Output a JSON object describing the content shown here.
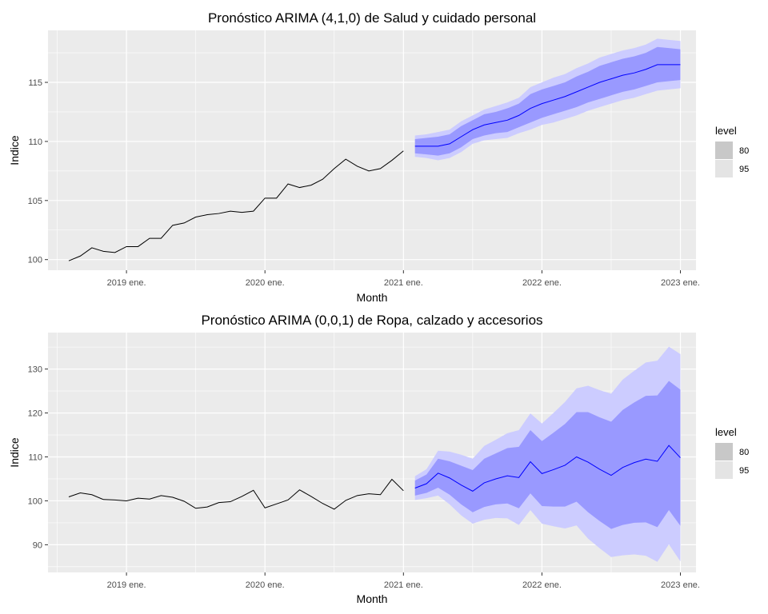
{
  "chart_data": [
    {
      "type": "line",
      "title": "Pronóstico ARIMA (4,1,0) de Salud y cuidado personal",
      "xlabel": "Month",
      "ylabel": "Indice",
      "ylim": [
        99.1,
        119.4
      ],
      "yticks": [
        100,
        105,
        110,
        115
      ],
      "xticks": [
        "2019 ene.",
        "2020 ene.",
        "2021 ene.",
        "2022 ene.",
        "2023 ene."
      ],
      "legend": {
        "title": "level",
        "entries": [
          "80",
          "95"
        ],
        "position": "right"
      },
      "colors": {
        "band95": "#ccccff",
        "band80": "#9999ff",
        "forecast_line": "#0000ff",
        "history_line": "#000000",
        "panel_bg": "#ebebeb",
        "grid": "#ffffff"
      },
      "history": {
        "x": [
          "2018-08",
          "2018-09",
          "2018-10",
          "2018-11",
          "2018-12",
          "2019-01",
          "2019-02",
          "2019-03",
          "2019-04",
          "2019-05",
          "2019-06",
          "2019-07",
          "2019-08",
          "2019-09",
          "2019-10",
          "2019-11",
          "2019-12",
          "2020-01",
          "2020-02",
          "2020-03",
          "2020-04",
          "2020-05",
          "2020-06",
          "2020-07",
          "2020-08",
          "2020-09",
          "2020-10",
          "2020-11",
          "2020-12",
          "2021-01"
        ],
        "values": [
          99.9,
          100.3,
          101.0,
          100.7,
          100.6,
          101.1,
          101.1,
          101.8,
          101.8,
          102.9,
          103.1,
          103.6,
          103.8,
          103.9,
          104.1,
          104.0,
          104.1,
          105.2,
          105.2,
          106.4,
          106.1,
          106.3,
          106.8,
          107.7,
          108.5,
          107.9,
          107.5,
          107.7,
          108.4,
          109.2
        ]
      },
      "forecast": {
        "x": [
          "2021-02",
          "2021-03",
          "2021-04",
          "2021-05",
          "2021-06",
          "2021-07",
          "2021-08",
          "2021-09",
          "2021-10",
          "2021-11",
          "2021-12",
          "2022-01",
          "2022-02",
          "2022-03",
          "2022-04",
          "2022-05",
          "2022-06",
          "2022-07",
          "2022-08",
          "2022-09",
          "2022-10",
          "2022-11",
          "2022-12",
          "2023-01"
        ],
        "mean": [
          109.6,
          109.6,
          109.6,
          109.8,
          110.4,
          111.0,
          111.4,
          111.6,
          111.8,
          112.2,
          112.8,
          113.2,
          113.5,
          113.8,
          114.2,
          114.6,
          115.0,
          115.3,
          115.6,
          115.8,
          116.1,
          116.5,
          116.5,
          116.5
        ],
        "lo80": [
          109.0,
          108.9,
          108.8,
          109.0,
          109.5,
          110.2,
          110.5,
          110.7,
          110.8,
          111.2,
          111.6,
          112.0,
          112.3,
          112.6,
          112.9,
          113.3,
          113.6,
          113.9,
          114.2,
          114.4,
          114.7,
          115.0,
          115.1,
          115.2
        ],
        "hi80": [
          110.2,
          110.3,
          110.4,
          110.6,
          111.3,
          111.8,
          112.3,
          112.5,
          112.8,
          113.2,
          114.0,
          114.4,
          114.7,
          115.0,
          115.5,
          115.9,
          116.4,
          116.7,
          117.0,
          117.2,
          117.5,
          118.0,
          117.9,
          117.8
        ],
        "lo95": [
          108.7,
          108.6,
          108.4,
          108.6,
          109.1,
          109.8,
          110.1,
          110.2,
          110.3,
          110.7,
          111.0,
          111.4,
          111.6,
          111.9,
          112.2,
          112.6,
          112.9,
          113.2,
          113.5,
          113.7,
          114.0,
          114.3,
          114.4,
          114.5
        ],
        "hi95": [
          110.5,
          110.6,
          110.8,
          111.0,
          111.7,
          112.2,
          112.7,
          113.0,
          113.3,
          113.7,
          114.6,
          115.0,
          115.4,
          115.7,
          116.2,
          116.6,
          117.1,
          117.4,
          117.7,
          117.9,
          118.2,
          118.7,
          118.6,
          118.5
        ]
      }
    },
    {
      "type": "line",
      "title": "Pronóstico ARIMA (0,0,1) de Ropa, calzado y accesorios",
      "xlabel": "Month",
      "ylabel": "Indice",
      "ylim": [
        83.7,
        138.3
      ],
      "yticks": [
        90,
        100,
        110,
        120,
        130
      ],
      "xticks": [
        "2019 ene.",
        "2020 ene.",
        "2021 ene.",
        "2022 ene.",
        "2023 ene."
      ],
      "legend": {
        "title": "level",
        "entries": [
          "80",
          "95"
        ],
        "position": "right"
      },
      "colors": {
        "band95": "#ccccff",
        "band80": "#9999ff",
        "forecast_line": "#0000ff",
        "history_line": "#000000",
        "panel_bg": "#ebebeb",
        "grid": "#ffffff"
      },
      "history": {
        "x": [
          "2018-08",
          "2018-09",
          "2018-10",
          "2018-11",
          "2018-12",
          "2019-01",
          "2019-02",
          "2019-03",
          "2019-04",
          "2019-05",
          "2019-06",
          "2019-07",
          "2019-08",
          "2019-09",
          "2019-10",
          "2019-11",
          "2019-12",
          "2020-01",
          "2020-02",
          "2020-03",
          "2020-04",
          "2020-05",
          "2020-06",
          "2020-07",
          "2020-08",
          "2020-09",
          "2020-10",
          "2020-11",
          "2020-12",
          "2021-01"
        ],
        "values": [
          100.9,
          101.8,
          101.4,
          100.3,
          100.2,
          100.0,
          100.6,
          100.4,
          101.2,
          100.8,
          99.9,
          98.3,
          98.6,
          99.6,
          99.8,
          101.0,
          102.4,
          98.4,
          99.3,
          100.2,
          102.5,
          101.0,
          99.4,
          98.1,
          100.1,
          101.2,
          101.6,
          101.4,
          104.9,
          102.3
        ]
      },
      "forecast": {
        "x": [
          "2021-02",
          "2021-03",
          "2021-04",
          "2021-05",
          "2021-06",
          "2021-07",
          "2021-08",
          "2021-09",
          "2021-10",
          "2021-11",
          "2021-12",
          "2022-01",
          "2022-02",
          "2022-03",
          "2022-04",
          "2022-05",
          "2022-06",
          "2022-07",
          "2022-08",
          "2022-09",
          "2022-10",
          "2022-11",
          "2022-12",
          "2023-01"
        ],
        "mean": [
          102.9,
          103.9,
          106.3,
          105.2,
          103.6,
          102.2,
          104.1,
          105.0,
          105.7,
          105.3,
          108.9,
          106.2,
          107.1,
          108.1,
          110.0,
          108.8,
          107.2,
          105.8,
          107.6,
          108.7,
          109.5,
          109.0,
          112.6,
          109.8
        ],
        "lo80": [
          101.2,
          101.8,
          103.0,
          101.4,
          99.2,
          97.4,
          98.6,
          99.2,
          99.4,
          98.3,
          101.7,
          98.8,
          98.7,
          98.7,
          99.8,
          97.4,
          95.4,
          93.6,
          94.5,
          95.0,
          95.1,
          94.0,
          97.9,
          94.3
        ],
        "hi80": [
          104.6,
          106.0,
          109.6,
          109.0,
          108.0,
          107.0,
          109.6,
          110.8,
          112.0,
          112.3,
          116.1,
          113.6,
          115.5,
          117.5,
          120.2,
          120.2,
          119.0,
          118.0,
          120.7,
          122.4,
          123.9,
          124.0,
          127.3,
          125.3
        ],
        "lo95": [
          100.2,
          100.6,
          101.2,
          99.2,
          96.7,
          94.8,
          95.7,
          96.1,
          96.0,
          94.5,
          97.9,
          94.8,
          94.2,
          93.7,
          94.4,
          91.4,
          89.2,
          87.2,
          87.6,
          87.8,
          87.5,
          86.1,
          90.1,
          86.2
        ],
        "hi95": [
          105.6,
          107.2,
          111.4,
          111.2,
          110.5,
          109.6,
          112.5,
          113.9,
          115.4,
          116.1,
          119.9,
          117.6,
          120.0,
          122.5,
          125.6,
          126.2,
          125.2,
          124.4,
          127.6,
          129.6,
          131.5,
          131.9,
          135.1,
          133.4
        ]
      }
    }
  ]
}
